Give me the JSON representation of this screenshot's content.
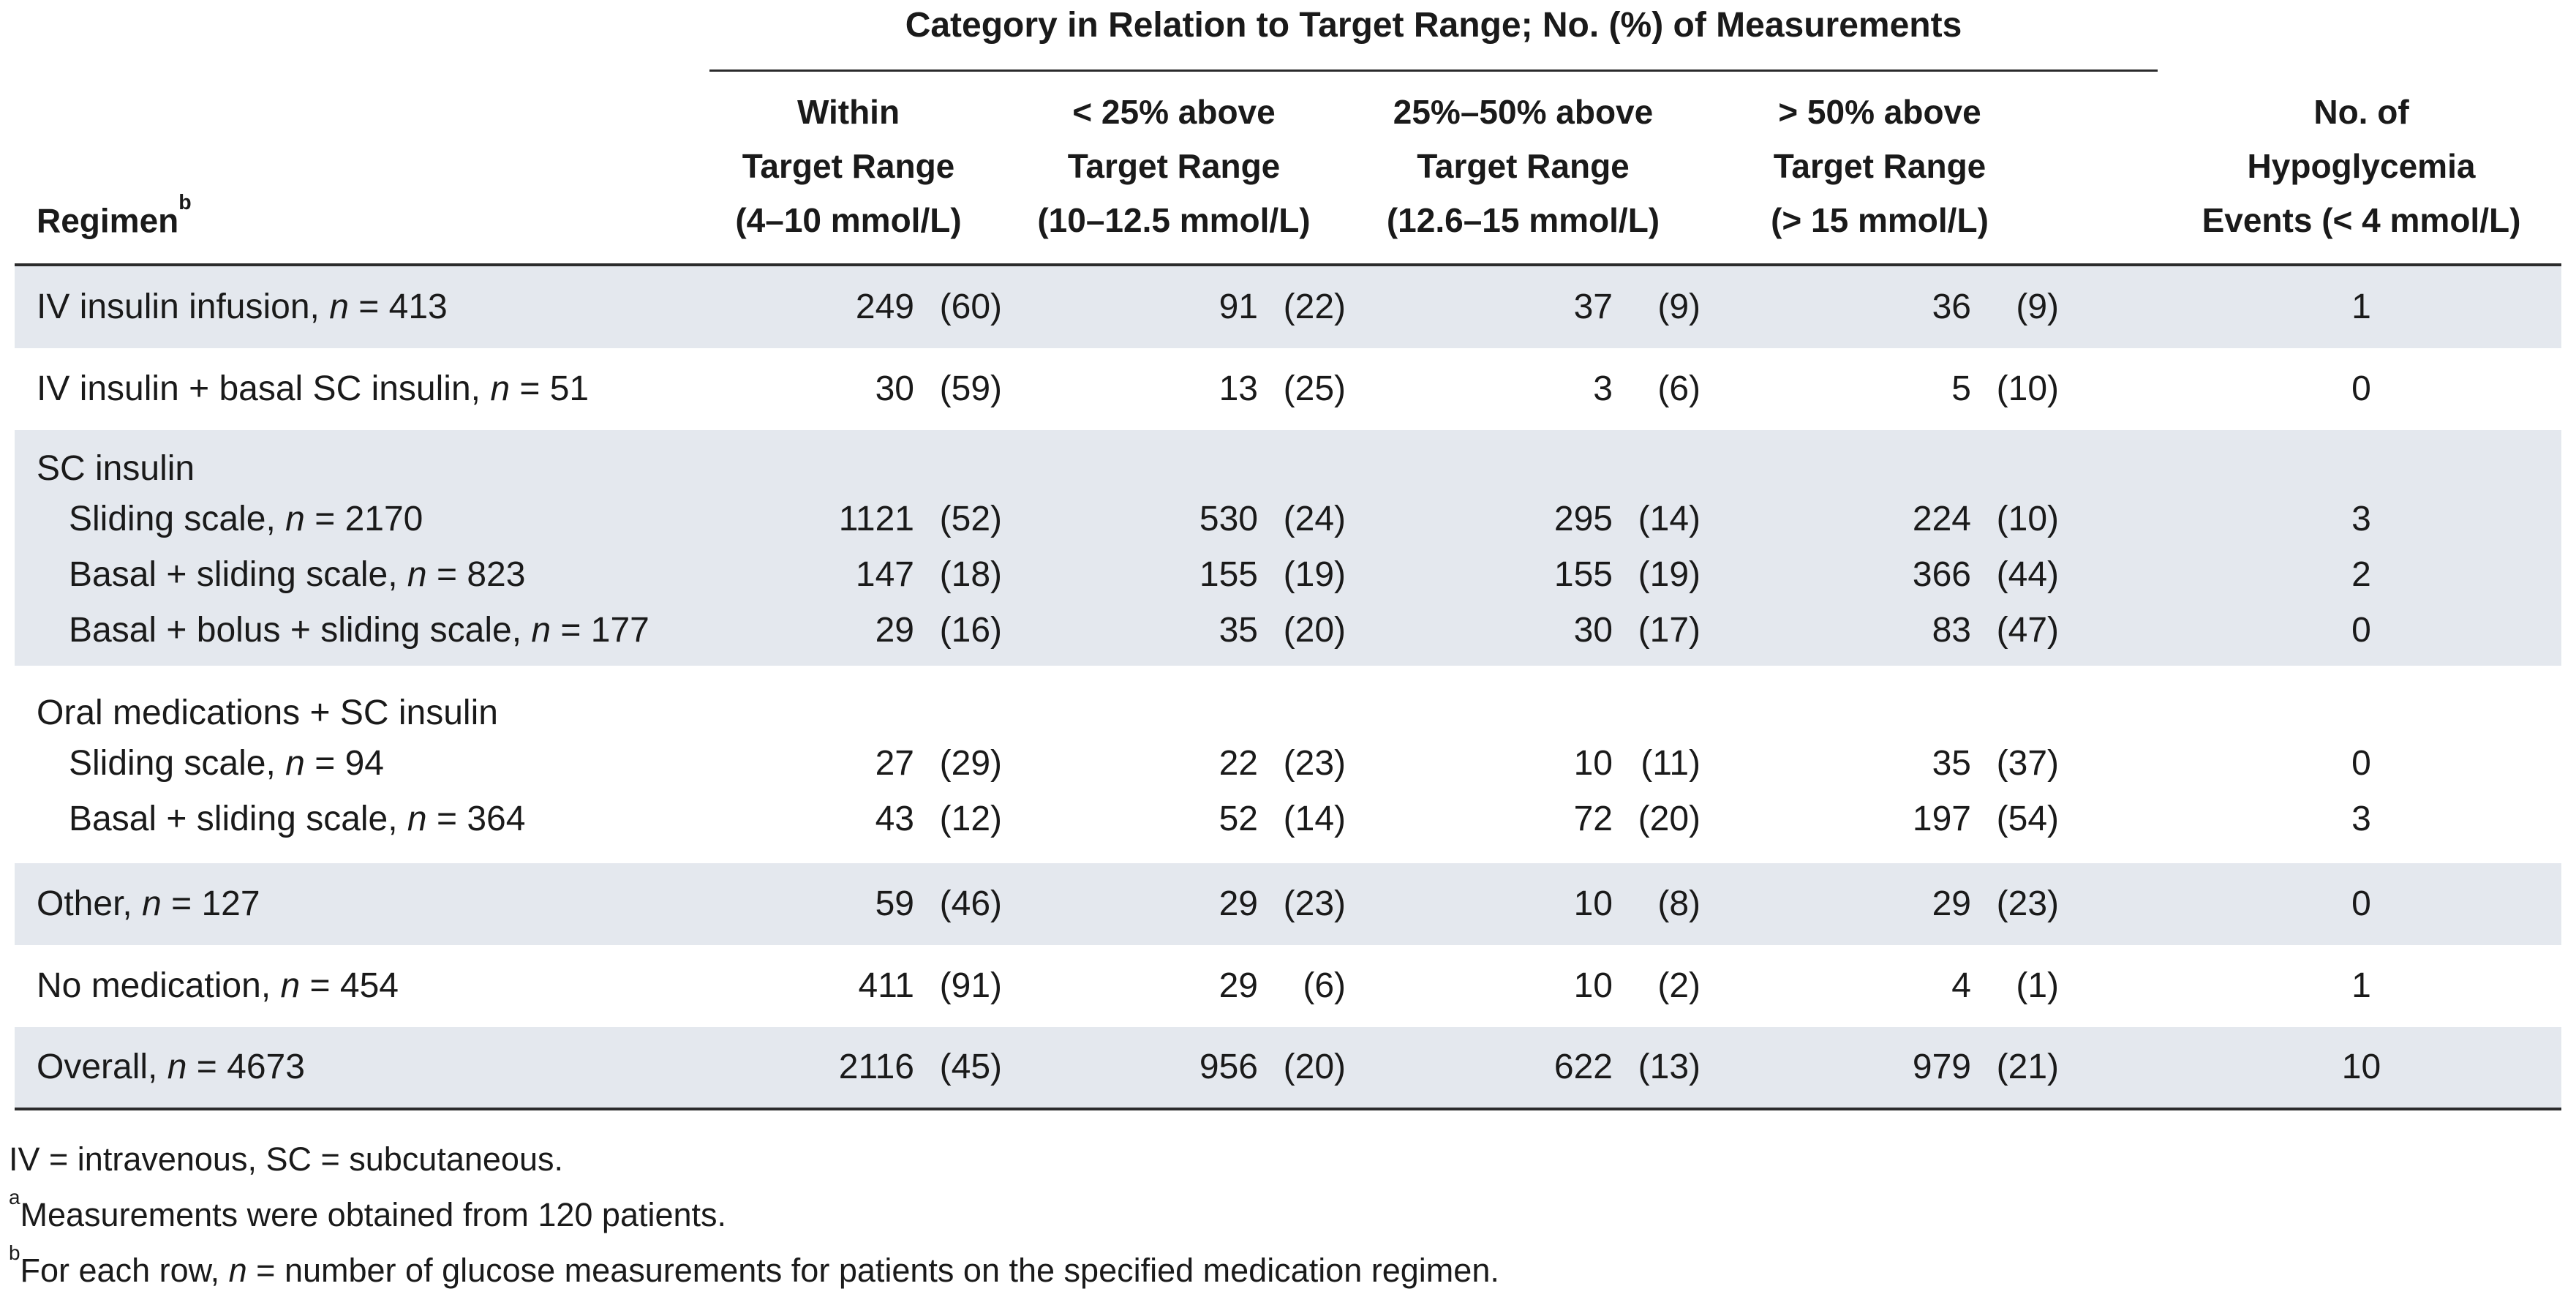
{
  "colors": {
    "row_shade": "#e4e8ee",
    "rule": "#2b2b2c",
    "text": "#1a1a1a",
    "background": "#ffffff"
  },
  "table": {
    "spanner": "Category in Relation to Target Range; No. (%) of Measurements",
    "headers": [
      {
        "lines": [
          "Regimen"
        ],
        "sup": "b"
      },
      {
        "lines": [
          "Within",
          "Target Range",
          "(4–10 mmol/L)"
        ]
      },
      {
        "lines": [
          "< 25% above",
          "Target Range",
          "(10–12.5 mmol/L)"
        ]
      },
      {
        "lines": [
          "25%–50% above",
          "Target Range",
          "(12.6–15 mmol/L)"
        ]
      },
      {
        "lines": [
          "> 50% above",
          "Target Range",
          "(> 15 mmol/L)"
        ]
      },
      {
        "lines": [
          "No. of",
          "Hypoglycemia",
          "Events (< 4 mmol/L)"
        ]
      }
    ],
    "rows": [
      {
        "label": "IV insulin infusion, n = 413",
        "cells": [
          [
            "249",
            "(60)"
          ],
          [
            "91",
            "(22)"
          ],
          [
            "37",
            "(9)"
          ],
          [
            "36",
            "(9)"
          ]
        ],
        "hypo": "1"
      },
      {
        "label": "IV insulin + basal SC insulin, n = 51",
        "cells": [
          [
            "30",
            "(59)"
          ],
          [
            "13",
            "(25)"
          ],
          [
            "3",
            "(6)"
          ],
          [
            "5",
            "(10)"
          ]
        ],
        "hypo": "0"
      },
      {
        "label": "SC insulin"
      },
      {
        "label": "Sliding scale, n = 2170",
        "cells": [
          [
            "1121",
            "(52)"
          ],
          [
            "530",
            "(24)"
          ],
          [
            "295",
            "(14)"
          ],
          [
            "224",
            "(10)"
          ]
        ],
        "hypo": "3"
      },
      {
        "label": "Basal + sliding scale, n = 823",
        "cells": [
          [
            "147",
            "(18)"
          ],
          [
            "155",
            "(19)"
          ],
          [
            "155",
            "(19)"
          ],
          [
            "366",
            "(44)"
          ]
        ],
        "hypo": "2"
      },
      {
        "label": "Basal + bolus + sliding scale, n = 177",
        "cells": [
          [
            "29",
            "(16)"
          ],
          [
            "35",
            "(20)"
          ],
          [
            "30",
            "(17)"
          ],
          [
            "83",
            "(47)"
          ]
        ],
        "hypo": "0"
      },
      {
        "label": "Oral medications + SC insulin"
      },
      {
        "label": "Sliding scale, n = 94",
        "cells": [
          [
            "27",
            "(29)"
          ],
          [
            "22",
            "(23)"
          ],
          [
            "10",
            "(11)"
          ],
          [
            "35",
            "(37)"
          ]
        ],
        "hypo": "0"
      },
      {
        "label": "Basal + sliding scale, n = 364",
        "cells": [
          [
            "43",
            "(12)"
          ],
          [
            "52",
            "(14)"
          ],
          [
            "72",
            "(20)"
          ],
          [
            "197",
            "(54)"
          ]
        ],
        "hypo": "3"
      },
      {
        "label": "Other, n = 127",
        "cells": [
          [
            "59",
            "(46)"
          ],
          [
            "29",
            "(23)"
          ],
          [
            "10",
            "(8)"
          ],
          [
            "29",
            "(23)"
          ]
        ],
        "hypo": "0"
      },
      {
        "label": "No medication, n = 454",
        "cells": [
          [
            "411",
            "(91)"
          ],
          [
            "29",
            "(6)"
          ],
          [
            "10",
            "(2)"
          ],
          [
            "4",
            "(1)"
          ]
        ],
        "hypo": "1"
      },
      {
        "label": "Overall, n = 4673",
        "cells": [
          [
            "2116",
            "(45)"
          ],
          [
            "956",
            "(20)"
          ],
          [
            "622",
            "(13)"
          ],
          [
            "979",
            "(21)"
          ]
        ],
        "hypo": "10"
      }
    ]
  },
  "footnotes": [
    {
      "text": "IV = intravenous, SC = subcutaneous."
    },
    {
      "marker": "a",
      "text": "Measurements were obtained from 120 patients."
    },
    {
      "marker": "b",
      "text": "For each row, n = number of glucose measurements for patients on the specified medication regimen."
    }
  ]
}
